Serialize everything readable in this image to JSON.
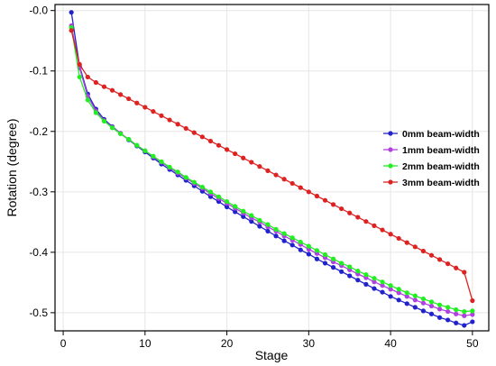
{
  "chart_data": {
    "type": "line",
    "title": "",
    "xlabel": "Stage",
    "ylabel": "Rotation (degree)",
    "xlim": [
      -1,
      52
    ],
    "ylim": [
      -0.53,
      0.01
    ],
    "xticks": [
      0,
      10,
      20,
      30,
      40,
      50
    ],
    "yticks": [
      -0.5,
      -0.4,
      -0.3,
      -0.2,
      -0.1,
      0.0
    ],
    "xtick_labels": [
      "0",
      "10",
      "20",
      "30",
      "40",
      "50"
    ],
    "ytick_labels": [
      "-0.5",
      "-0.4",
      "-0.3",
      "-0.2",
      "-0.1",
      "-0.0"
    ],
    "grid": true,
    "legend_position": "right",
    "series": [
      {
        "name": "0mm beam-width",
        "color": "#2222cc",
        "values": [
          -0.003,
          -0.092,
          -0.138,
          -0.163,
          -0.18,
          -0.192,
          -0.203,
          -0.214,
          -0.224,
          -0.234,
          -0.244,
          -0.254,
          -0.263,
          -0.272,
          -0.281,
          -0.29,
          -0.299,
          -0.308,
          -0.316,
          -0.325,
          -0.333,
          -0.341,
          -0.349,
          -0.357,
          -0.365,
          -0.373,
          -0.381,
          -0.388,
          -0.396,
          -0.403,
          -0.411,
          -0.418,
          -0.425,
          -0.432,
          -0.439,
          -0.446,
          -0.453,
          -0.46,
          -0.466,
          -0.473,
          -0.479,
          -0.485,
          -0.491,
          -0.497,
          -0.502,
          -0.508,
          -0.512,
          -0.517,
          -0.521,
          -0.515
        ]
      },
      {
        "name": "1mm beam-width",
        "color": "#b040e0",
        "values": [
          -0.025,
          -0.095,
          -0.142,
          -0.166,
          -0.182,
          -0.193,
          -0.203,
          -0.213,
          -0.223,
          -0.232,
          -0.242,
          -0.251,
          -0.26,
          -0.269,
          -0.277,
          -0.286,
          -0.294,
          -0.303,
          -0.311,
          -0.319,
          -0.327,
          -0.335,
          -0.343,
          -0.35,
          -0.358,
          -0.365,
          -0.373,
          -0.38,
          -0.387,
          -0.395,
          -0.402,
          -0.409,
          -0.416,
          -0.422,
          -0.429,
          -0.436,
          -0.442,
          -0.449,
          -0.455,
          -0.461,
          -0.467,
          -0.473,
          -0.479,
          -0.484,
          -0.489,
          -0.494,
          -0.498,
          -0.502,
          -0.505,
          -0.503
        ]
      },
      {
        "name": "2mm beam-width",
        "color": "#22ee22",
        "values": [
          -0.028,
          -0.11,
          -0.148,
          -0.169,
          -0.183,
          -0.194,
          -0.204,
          -0.213,
          -0.223,
          -0.232,
          -0.241,
          -0.25,
          -0.259,
          -0.267,
          -0.276,
          -0.284,
          -0.292,
          -0.3,
          -0.308,
          -0.316,
          -0.324,
          -0.332,
          -0.339,
          -0.347,
          -0.354,
          -0.362,
          -0.369,
          -0.376,
          -0.383,
          -0.39,
          -0.397,
          -0.404,
          -0.411,
          -0.418,
          -0.424,
          -0.431,
          -0.437,
          -0.443,
          -0.449,
          -0.455,
          -0.461,
          -0.467,
          -0.472,
          -0.477,
          -0.482,
          -0.487,
          -0.491,
          -0.495,
          -0.498,
          -0.497
        ]
      },
      {
        "name": "3mm beam-width",
        "color": "#dd2222",
        "values": [
          -0.033,
          -0.089,
          -0.11,
          -0.119,
          -0.126,
          -0.132,
          -0.139,
          -0.146,
          -0.153,
          -0.16,
          -0.167,
          -0.174,
          -0.181,
          -0.188,
          -0.195,
          -0.202,
          -0.209,
          -0.216,
          -0.223,
          -0.23,
          -0.237,
          -0.244,
          -0.251,
          -0.258,
          -0.265,
          -0.272,
          -0.279,
          -0.286,
          -0.293,
          -0.3,
          -0.307,
          -0.314,
          -0.321,
          -0.328,
          -0.335,
          -0.342,
          -0.349,
          -0.356,
          -0.363,
          -0.37,
          -0.377,
          -0.384,
          -0.391,
          -0.398,
          -0.405,
          -0.412,
          -0.419,
          -0.426,
          -0.433,
          -0.48
        ]
      }
    ],
    "x": [
      1,
      2,
      3,
      4,
      5,
      6,
      7,
      8,
      9,
      10,
      11,
      12,
      13,
      14,
      15,
      16,
      17,
      18,
      19,
      20,
      21,
      22,
      23,
      24,
      25,
      26,
      27,
      28,
      29,
      30,
      31,
      32,
      33,
      34,
      35,
      36,
      37,
      38,
      39,
      40,
      41,
      42,
      43,
      44,
      45,
      46,
      47,
      48,
      49,
      50
    ]
  }
}
